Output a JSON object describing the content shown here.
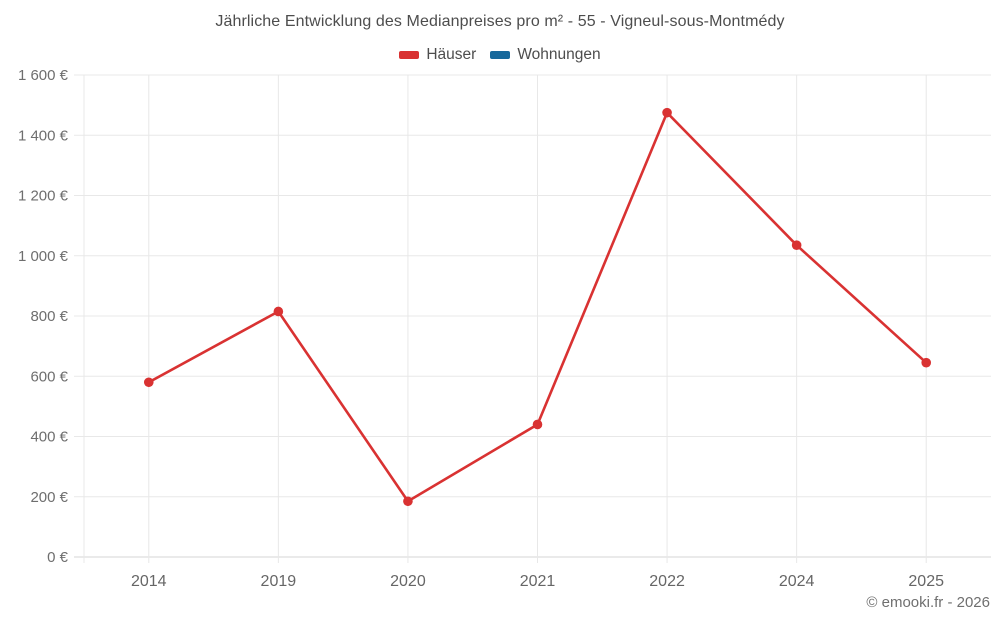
{
  "chart_data": {
    "type": "line",
    "title": "Jährliche Entwicklung des Medianpreises pro m² - 55 - Vigneul-sous-Montmédy",
    "categories": [
      "2014",
      "2019",
      "2020",
      "2021",
      "2022",
      "2024",
      "2025"
    ],
    "series": [
      {
        "name": "Häuser",
        "color": "#d93232",
        "values": [
          580,
          815,
          185,
          440,
          1475,
          1035,
          645
        ]
      },
      {
        "name": "Wohnungen",
        "color": "#17689b",
        "values": []
      }
    ],
    "xlabel": "",
    "ylabel": "",
    "ylim": [
      0,
      1600
    ],
    "ytick_step": 200,
    "ytick_labels": [
      "0 €",
      "200 €",
      "400 €",
      "600 €",
      "800 €",
      "1 000 €",
      "1 200 €",
      "1 400 €",
      "1 600 €"
    ],
    "grid": true,
    "legend_position": "top",
    "grid_color": "#e8e8e8",
    "axis_color": "#d6d6d6"
  },
  "footer": {
    "credit": "© emooki.fr - 2026"
  }
}
